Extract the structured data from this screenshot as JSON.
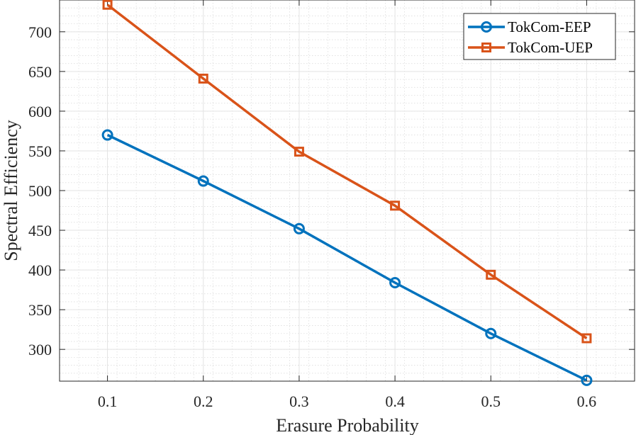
{
  "chart_data": {
    "type": "line",
    "xlabel": "Erasure Probability",
    "ylabel": "Spectral Efficiency",
    "x": [
      0.1,
      0.2,
      0.3,
      0.4,
      0.5,
      0.6
    ],
    "x_ticks": [
      "0.1",
      "0.2",
      "0.3",
      "0.4",
      "0.5",
      "0.6"
    ],
    "y_ticks": [
      "300",
      "350",
      "400",
      "450",
      "500",
      "550",
      "600",
      "650",
      "700"
    ],
    "xlim": [
      0.05,
      0.65
    ],
    "ylim": [
      260,
      740
    ],
    "grid": true,
    "minor_grid": true,
    "legend_position": "top-right",
    "series": [
      {
        "name": "TokCom-EEP",
        "marker": "circle",
        "color": "#0072BD",
        "values": [
          570,
          512,
          452,
          384,
          320,
          261
        ]
      },
      {
        "name": "TokCom-UEP",
        "marker": "square",
        "color": "#D95319",
        "values": [
          734,
          641,
          549,
          481,
          394,
          314
        ]
      }
    ]
  }
}
